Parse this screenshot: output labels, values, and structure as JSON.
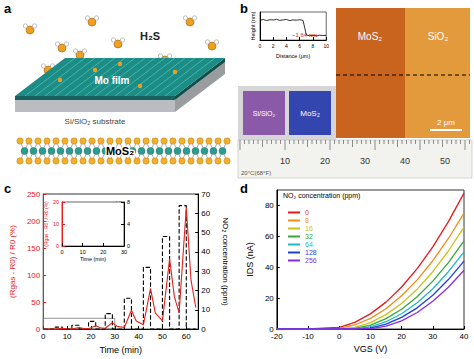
{
  "panel_labels": [
    "a",
    "b",
    "c",
    "d"
  ],
  "a": {
    "molecule_label": "H₂S",
    "film_label": "Mo film",
    "substrate_label": "Si/SiO₂ substrate",
    "product_label": "MoS₂"
  },
  "b": {
    "photo_labels": [
      "Si/SiO₂",
      "MoS₂"
    ],
    "ruler_labels": [
      "10",
      "20",
      "30",
      "40",
      "50"
    ],
    "ruler_note": "20°C(68°F)",
    "afm_labels": [
      "MoS₂",
      "SiO₂"
    ],
    "scale_bar": "2 μm"
  },
  "chart_data": [
    {
      "type": "line",
      "xlabel": "Distance (μm)",
      "ylabel": "Height (nm)",
      "annotation": "~1.64 nm",
      "xlim": [
        0,
        10
      ],
      "xticks": [
        0,
        2,
        4,
        6,
        8,
        10
      ],
      "ylim": [
        -0.5,
        2.5
      ],
      "tick_labels": "x",
      "color": "#000000",
      "x": [
        0,
        0.5,
        1,
        1.5,
        2,
        2.5,
        3,
        3.5,
        4,
        4.5,
        5,
        5.5,
        6,
        6.5,
        7,
        7.5,
        8,
        8.5,
        9,
        9.5,
        10
      ],
      "values": [
        1.62,
        1.7,
        1.58,
        1.68,
        1.64,
        1.72,
        1.6,
        1.66,
        1.7,
        1.58,
        1.66,
        1.62,
        1.68,
        1.6,
        0.05,
        -0.04,
        0.02,
        -0.06,
        0.03,
        -0.02,
        0.01
      ]
    },
    {
      "type": "line",
      "xlabel": "Time (min)",
      "ylabel": "(Rgas - R0) / R0 (%)",
      "y2label": "NO₂ concentration (ppm)",
      "xlim": [
        0,
        65
      ],
      "xticks": [
        0,
        10,
        20,
        30,
        40,
        50,
        60
      ],
      "ylim": [
        0,
        250
      ],
      "yticks": [
        0,
        50,
        100,
        150,
        200,
        250
      ],
      "y2lim": [
        0,
        70
      ],
      "y2ticks": [
        0,
        10,
        20,
        30,
        40,
        50,
        60,
        70
      ],
      "series": [
        {
          "color": "#e3201b",
          "line_style": "solid",
          "x": [
            0,
            5,
            8,
            10,
            12,
            15,
            17,
            19,
            22,
            24,
            26,
            29,
            31,
            34,
            37,
            39,
            42,
            45,
            47,
            50,
            53,
            55,
            57,
            60,
            62,
            64
          ],
          "values": [
            0,
            0,
            1.5,
            0.6,
            0.3,
            3,
            1.2,
            0.8,
            6,
            2.5,
            1.5,
            12,
            5,
            3,
            35,
            15,
            8,
            75,
            30,
            15,
            130,
            60,
            30,
            225,
            90,
            40
          ]
        },
        {
          "color": "#000000",
          "line_style": "dashed",
          "axis": "y2",
          "x": [
            0,
            5,
            5,
            8,
            8,
            12,
            12,
            15,
            15,
            19,
            19,
            22,
            22,
            26,
            26,
            29,
            29,
            34,
            34,
            37,
            37,
            42,
            42,
            45,
            45,
            50,
            50,
            53,
            53,
            57,
            57,
            60,
            60,
            64
          ],
          "values": [
            0,
            0,
            1,
            1,
            0,
            0,
            2,
            2,
            0,
            0,
            4,
            4,
            0,
            0,
            8,
            8,
            0,
            0,
            16,
            16,
            0,
            0,
            32,
            32,
            0,
            0,
            48,
            48,
            0,
            0,
            64,
            64,
            0,
            0
          ]
        }
      ],
      "inset": {
        "xlabel": "Time (min)",
        "ylabel": "(Rgas - R0) / R0 (%)",
        "xlim": [
          0,
          30
        ],
        "xticks": [
          0,
          10,
          20,
          30
        ],
        "ylim": [
          0,
          20
        ],
        "yticks": [
          0,
          10,
          20
        ],
        "y2lim": [
          0,
          8
        ],
        "y2ticks": [
          0,
          4,
          8
        ]
      }
    },
    {
      "type": "line",
      "xlabel": "VGS (V)",
      "ylabel": "IDS (nA)",
      "legend": "upper left",
      "legend_title": "NO₂ concentration (ppm)",
      "xlim": [
        -20,
        40
      ],
      "xticks": [
        -20,
        -10,
        0,
        10,
        20,
        30,
        40
      ],
      "ylim": [
        0,
        90
      ],
      "yticks": [
        0,
        20,
        40,
        60,
        80
      ],
      "x": [
        -20,
        -10,
        0,
        5,
        10,
        15,
        20,
        25,
        30,
        35,
        40
      ],
      "series": [
        {
          "name": "0",
          "color": "#e41a1c",
          "values": [
            0,
            0,
            1.1,
            4.3,
            9.8,
            17.4,
            27.2,
            39.1,
            53.2,
            69.5,
            88
          ]
        },
        {
          "name": "8",
          "color": "#f08c1a",
          "values": [
            0,
            0,
            0.4,
            2.6,
            6.9,
            13.1,
            21.5,
            31.8,
            44.2,
            58.6,
            75
          ]
        },
        {
          "name": "16",
          "color": "#c9c21a",
          "values": [
            0,
            0,
            0,
            1.0,
            4.1,
            9.3,
            16.5,
            25.8,
            37.1,
            50.5,
            66
          ]
        },
        {
          "name": "32",
          "color": "#3aa63a",
          "values": [
            0,
            0,
            0,
            0.4,
            2.5,
            6.7,
            12.8,
            20.9,
            31,
            43,
            57
          ]
        },
        {
          "name": "64",
          "color": "#1fb8c9",
          "values": [
            0,
            0,
            0,
            0,
            1.4,
            4.7,
            9.9,
            17,
            26.1,
            37.1,
            50
          ]
        },
        {
          "name": "128",
          "color": "#1f3fd6",
          "values": [
            0,
            0,
            0,
            0,
            0.6,
            3.1,
            7.5,
            13.7,
            21.9,
            32,
            44
          ]
        },
        {
          "name": "256",
          "color": "#8a2be2",
          "values": [
            0,
            0,
            0,
            0,
            0.1,
            1.8,
            5.3,
            10.7,
            18,
            27,
            38
          ]
        }
      ]
    }
  ]
}
